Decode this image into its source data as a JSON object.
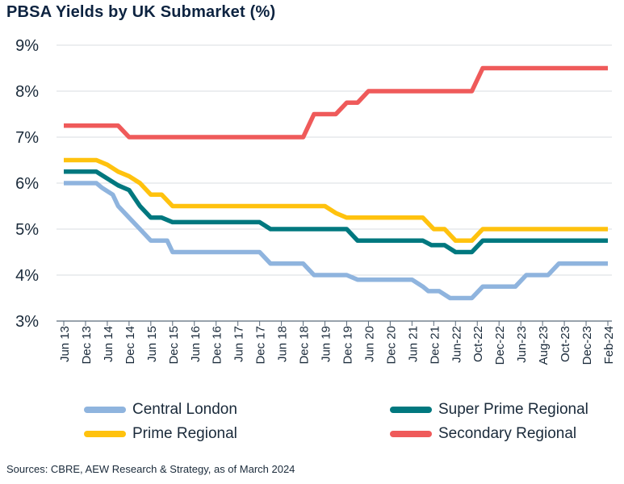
{
  "title": "PBSA Yields by UK Submarket (%)",
  "source": "Sources: CBRE, AEW Research & Strategy, as of March 2024",
  "colors": {
    "central_london": "#8fb4de",
    "super_prime": "#00787f",
    "prime": "#ffc20e",
    "secondary": "#ef5a5a",
    "axis": "#5a6a7a",
    "grid": "#d9dde2"
  },
  "chart_data": {
    "type": "line",
    "title": "PBSA Yields by UK Submarket (%)",
    "xlabel": "",
    "ylabel": "",
    "ylim": [
      3,
      9
    ],
    "yticks": [
      "3%",
      "4%",
      "5%",
      "6%",
      "7%",
      "8%",
      "9%"
    ],
    "grid": true,
    "legend_position": "bottom",
    "categories": [
      "Jun 13",
      "Dec 13",
      "Jun 14",
      "Dec 14",
      "Jun 15",
      "Dec 15",
      "Jun 16",
      "Dec 16",
      "Jun 17",
      "Dec 17",
      "Jun 18",
      "Dec 18",
      "Jun 19",
      "Dec 19",
      "Jun 20",
      "Dec 20",
      "Jun 21",
      "Dec 21",
      "Jun-22",
      "Oct-22",
      "Dec-22",
      "Jun-23",
      "Aug-23",
      "Oct-23",
      "Dec-23",
      "Feb-24"
    ],
    "series": [
      {
        "name": "Central London",
        "color": "#8fb4de",
        "points": [
          [
            0,
            6.0
          ],
          [
            1.5,
            6.0
          ],
          [
            1.75,
            5.9
          ],
          [
            2.25,
            5.75
          ],
          [
            2.5,
            5.5
          ],
          [
            3,
            5.25
          ],
          [
            3.5,
            5.0
          ],
          [
            4,
            4.75
          ],
          [
            4.75,
            4.75
          ],
          [
            5,
            4.5
          ],
          [
            9,
            4.5
          ],
          [
            9.5,
            4.25
          ],
          [
            11,
            4.25
          ],
          [
            11.5,
            4.0
          ],
          [
            13,
            4.0
          ],
          [
            13.5,
            3.9
          ],
          [
            16,
            3.9
          ],
          [
            16.5,
            3.75
          ],
          [
            16.75,
            3.65
          ],
          [
            17.25,
            3.65
          ],
          [
            17.75,
            3.5
          ],
          [
            18.75,
            3.5
          ],
          [
            19.25,
            3.75
          ],
          [
            20.75,
            3.75
          ],
          [
            21.25,
            4.0
          ],
          [
            22.25,
            4.0
          ],
          [
            22.75,
            4.25
          ],
          [
            25,
            4.25
          ]
        ]
      },
      {
        "name": "Super Prime Regional",
        "color": "#00787f",
        "points": [
          [
            0,
            6.25
          ],
          [
            1.5,
            6.25
          ],
          [
            2,
            6.1
          ],
          [
            2.5,
            5.95
          ],
          [
            3,
            5.85
          ],
          [
            3.5,
            5.5
          ],
          [
            4,
            5.25
          ],
          [
            4.5,
            5.25
          ],
          [
            5,
            5.15
          ],
          [
            9,
            5.15
          ],
          [
            9.5,
            5.0
          ],
          [
            13,
            5.0
          ],
          [
            13.5,
            4.75
          ],
          [
            16.5,
            4.75
          ],
          [
            16.9,
            4.65
          ],
          [
            17.5,
            4.65
          ],
          [
            18,
            4.5
          ],
          [
            18.75,
            4.5
          ],
          [
            19.25,
            4.75
          ],
          [
            25,
            4.75
          ]
        ]
      },
      {
        "name": "Prime Regional",
        "color": "#ffc20e",
        "points": [
          [
            0,
            6.5
          ],
          [
            1.5,
            6.5
          ],
          [
            2,
            6.4
          ],
          [
            2.5,
            6.25
          ],
          [
            3,
            6.15
          ],
          [
            3.5,
            6.0
          ],
          [
            4,
            5.75
          ],
          [
            4.5,
            5.75
          ],
          [
            5,
            5.5
          ],
          [
            12,
            5.5
          ],
          [
            12.5,
            5.35
          ],
          [
            13,
            5.25
          ],
          [
            16.5,
            5.25
          ],
          [
            17,
            5.0
          ],
          [
            17.5,
            5.0
          ],
          [
            18,
            4.75
          ],
          [
            18.75,
            4.75
          ],
          [
            19.25,
            5.0
          ],
          [
            25,
            5.0
          ]
        ]
      },
      {
        "name": "Secondary Regional",
        "color": "#ef5a5a",
        "points": [
          [
            0,
            7.25
          ],
          [
            2.5,
            7.25
          ],
          [
            3,
            7.0
          ],
          [
            11,
            7.0
          ],
          [
            11.5,
            7.5
          ],
          [
            12.5,
            7.5
          ],
          [
            13,
            7.75
          ],
          [
            13.5,
            7.75
          ],
          [
            14,
            8.0
          ],
          [
            18.75,
            8.0
          ],
          [
            19.25,
            8.5
          ],
          [
            25,
            8.5
          ]
        ]
      }
    ]
  }
}
